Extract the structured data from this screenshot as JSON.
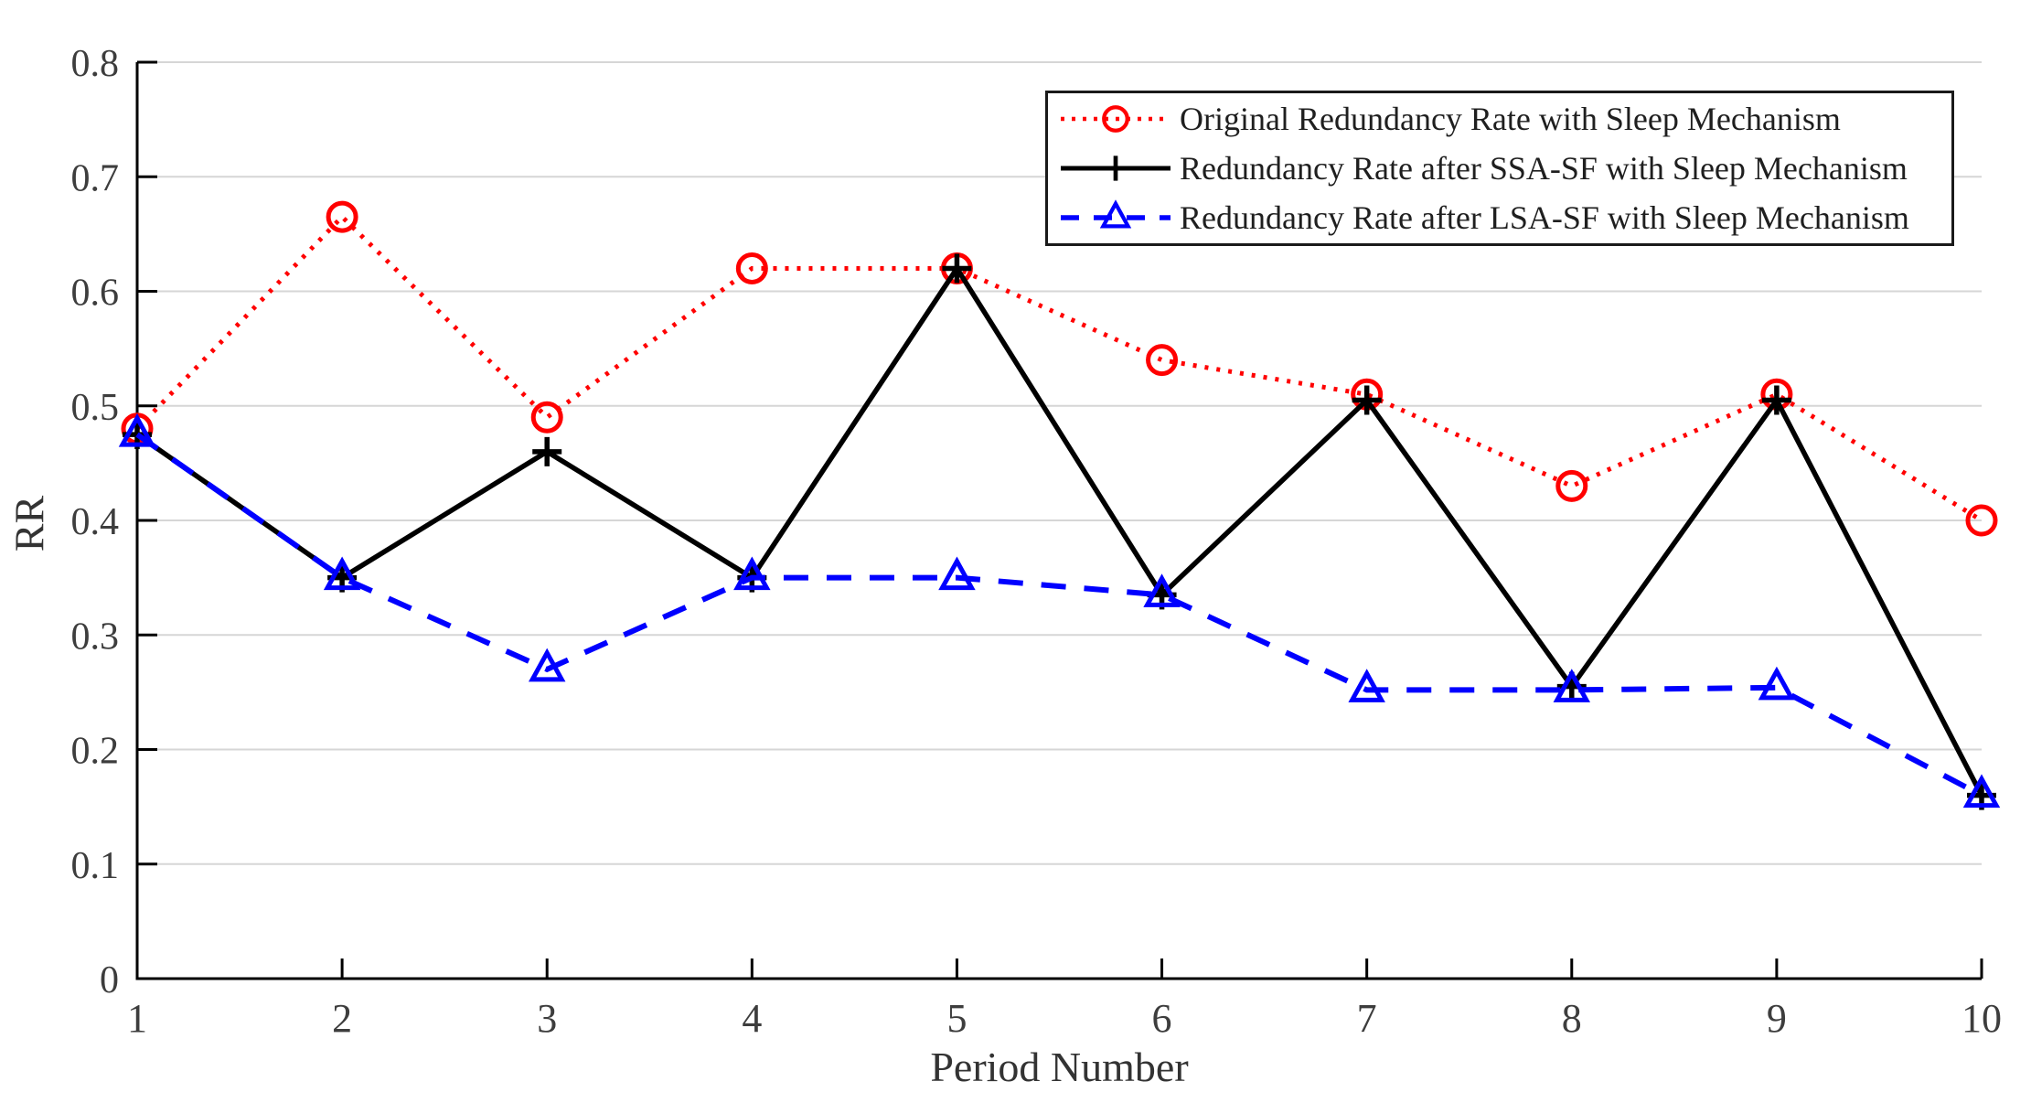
{
  "chart_data": {
    "type": "line",
    "xlabel": "Period Number",
    "ylabel": "RR",
    "x": [
      1,
      2,
      3,
      4,
      5,
      6,
      7,
      8,
      9,
      10
    ],
    "xlim": [
      1,
      10
    ],
    "ylim": [
      0,
      0.8
    ],
    "ytick_step": 0.1,
    "xtick_labels": [
      "1",
      "2",
      "3",
      "4",
      "5",
      "6",
      "7",
      "8",
      "9",
      "10"
    ],
    "ytick_labels": [
      "0",
      "0.1",
      "0.2",
      "0.3",
      "0.4",
      "0.5",
      "0.6",
      "0.7",
      "0.8"
    ],
    "grid": "horizontal",
    "legend_position": "top-right",
    "colors": {
      "axis": "#000000",
      "grid": "#d6d6d6",
      "text": "#3d3d3d"
    },
    "series": [
      {
        "name": "Original Redundancy Rate with Sleep Mechanism",
        "color": "#ff0000",
        "line_style": "dotted",
        "marker": "circle",
        "values": [
          0.48,
          0.665,
          0.49,
          0.62,
          0.62,
          0.54,
          0.51,
          0.43,
          0.51,
          0.4
        ]
      },
      {
        "name": "Redundancy Rate after SSA-SF with Sleep Mechanism",
        "color": "#000000",
        "line_style": "solid",
        "marker": "plus",
        "values": [
          0.475,
          0.35,
          0.46,
          0.35,
          0.62,
          0.335,
          0.505,
          0.255,
          0.505,
          0.16
        ]
      },
      {
        "name": "Redundancy Rate after LSA-SF with Sleep Mechanism",
        "color": "#0000ff",
        "line_style": "dashed",
        "marker": "triangle",
        "values": [
          0.475,
          0.35,
          0.27,
          0.35,
          0.35,
          0.335,
          0.252,
          0.252,
          0.254,
          0.16
        ]
      }
    ]
  }
}
